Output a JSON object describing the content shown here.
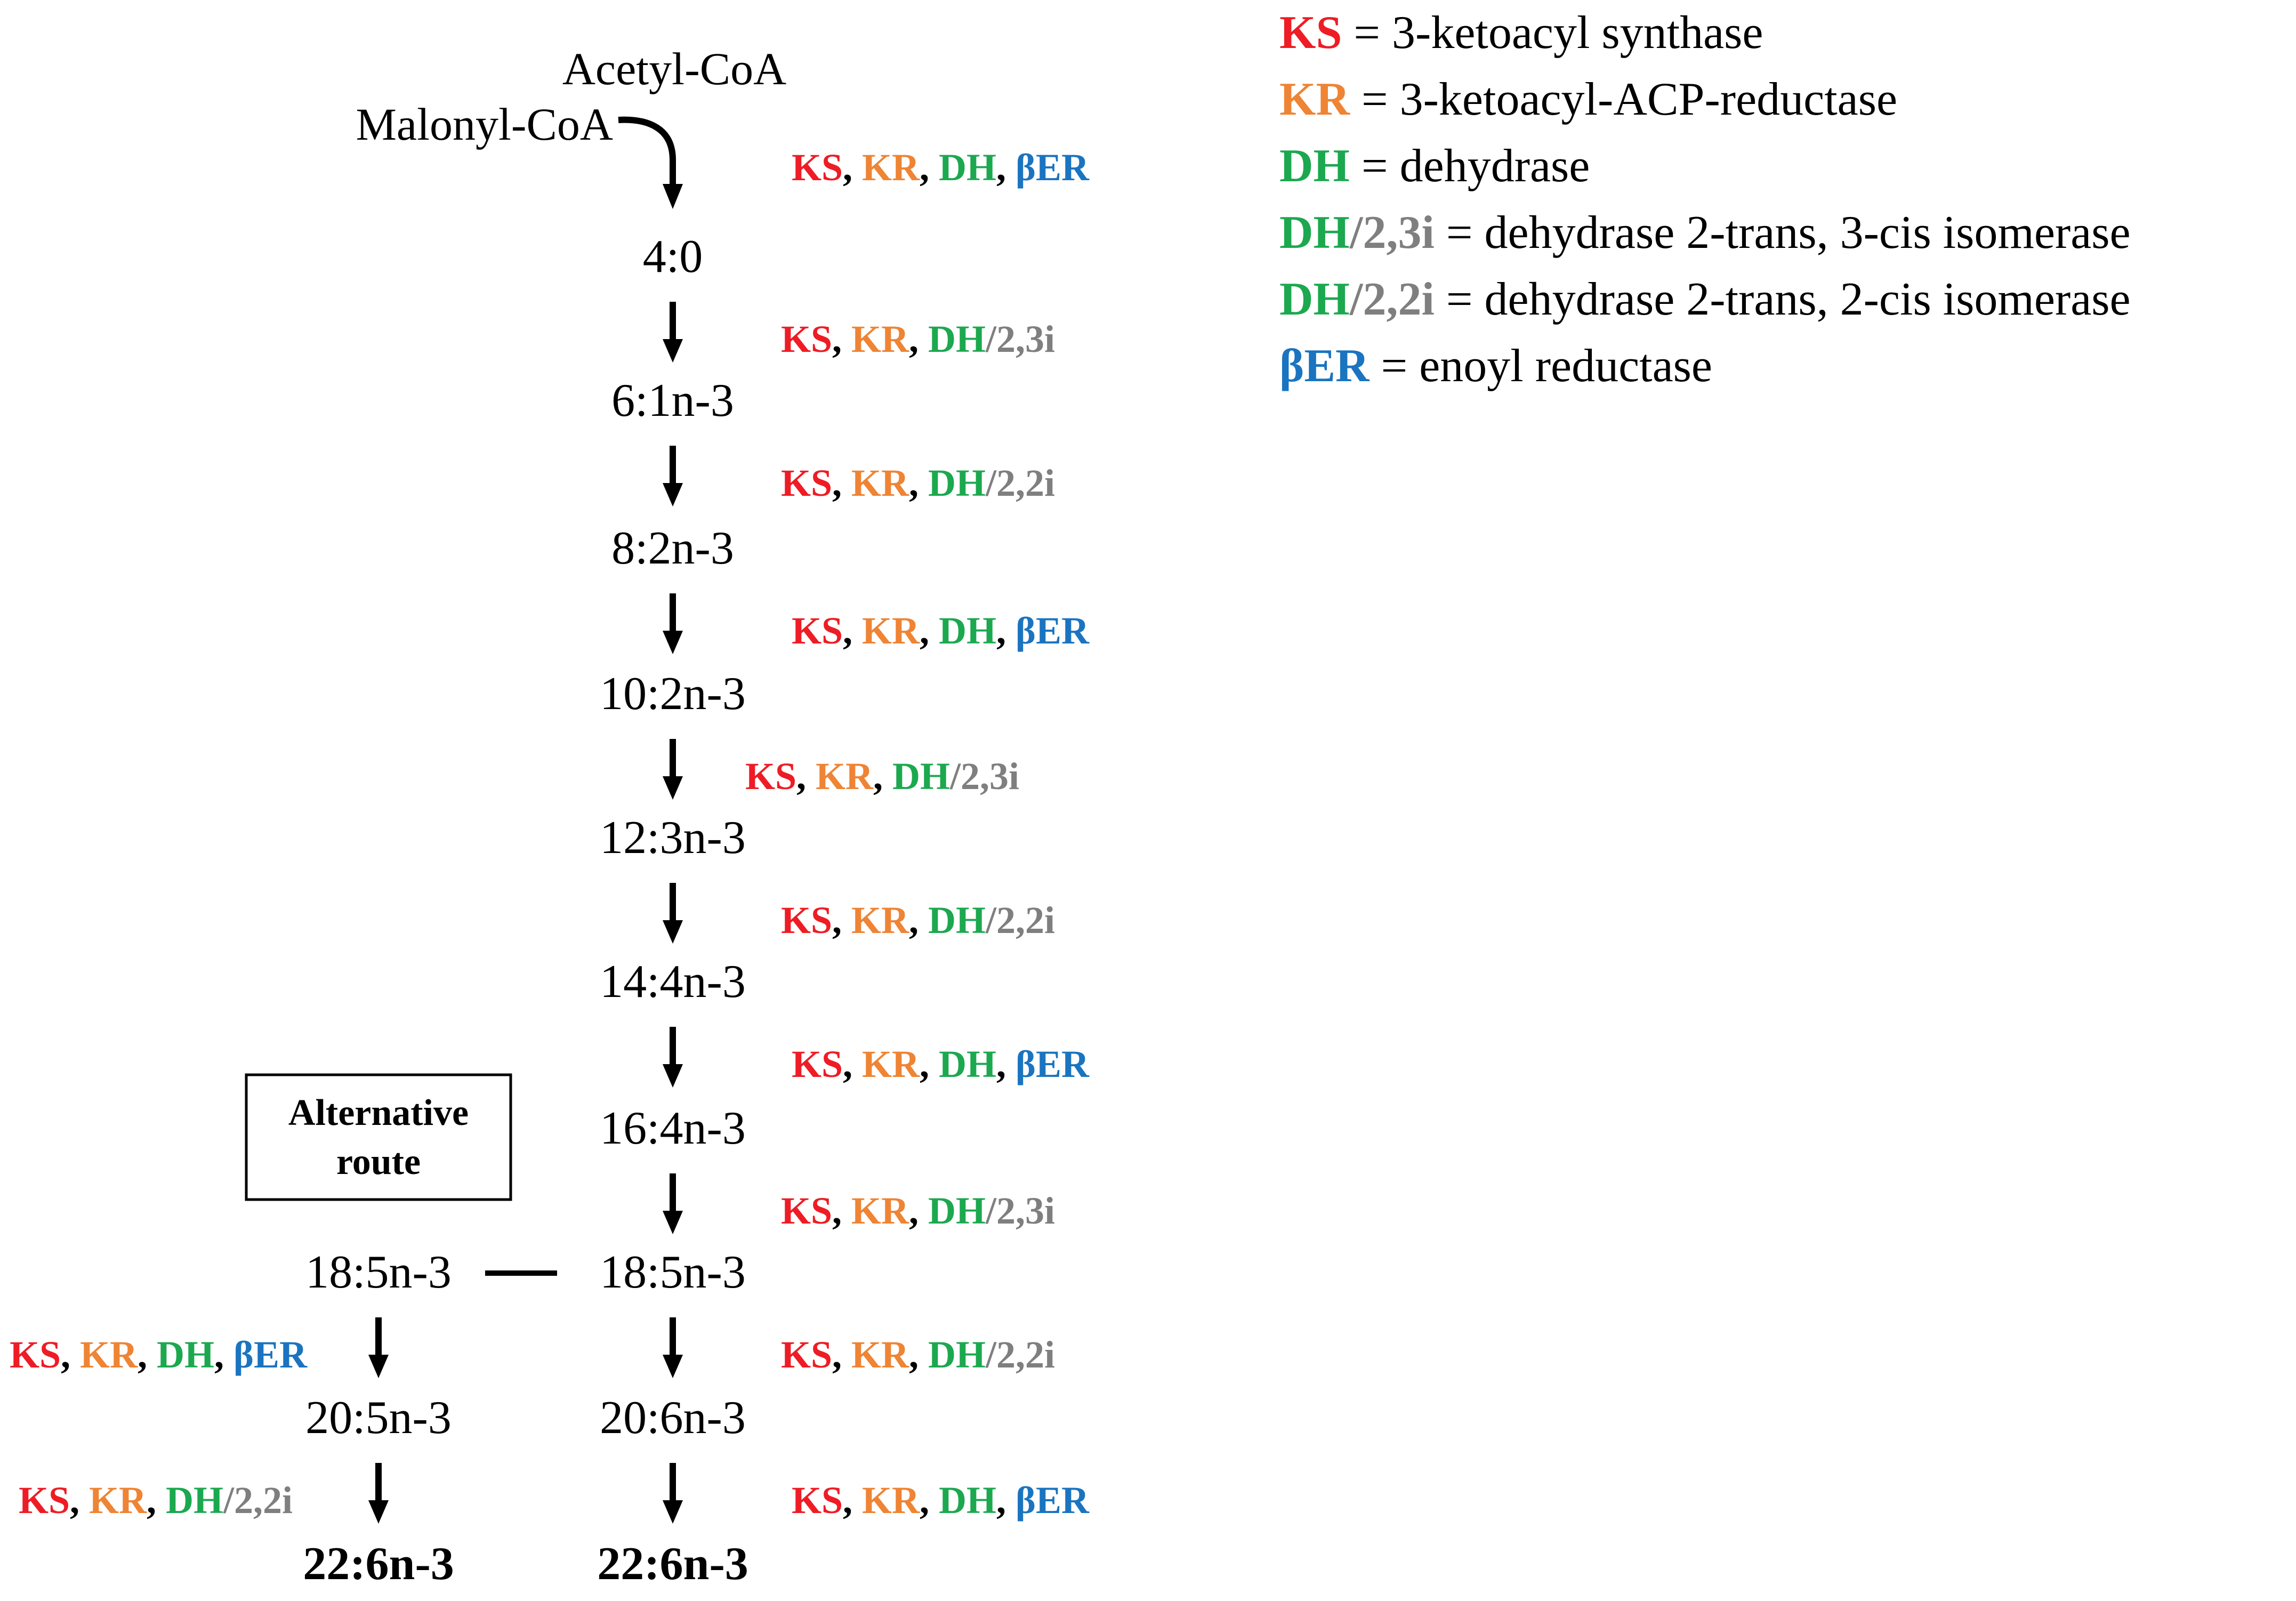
{
  "colors": {
    "KS": "#ee1c25",
    "KR": "#ee8434",
    "DH": "#1ca84f",
    "iso": "#7f7f7f",
    "ER": "#1a74c0",
    "text": "#000000"
  },
  "start": {
    "acetyl": "Acetyl-CoA",
    "malonyl": "Malonyl-CoA"
  },
  "enzymes": {
    "KS": "KS",
    "KR": "KR",
    "DH": "DH",
    "ER": "βER",
    "i23": "/2,3i",
    "i22": "/2,2i",
    "sep": ", "
  },
  "main_intermediates": [
    "4:0",
    "6:1n-3",
    "8:2n-3",
    "10:2n-3",
    "12:3n-3",
    "14:4n-3",
    "16:4n-3",
    "18:5n-3",
    "20:6n-3",
    "22:6n-3"
  ],
  "main_steps": [
    "ER",
    "i23",
    "i22",
    "ER",
    "i23",
    "i22",
    "ER",
    "i23",
    "i22",
    "ER"
  ],
  "alt": {
    "box_line1": "Alternative",
    "box_line2": "route",
    "intermediates": [
      "18:5n-3",
      "20:5n-3",
      "22:6n-3"
    ],
    "steps": [
      "ER",
      "i22"
    ]
  },
  "legend": [
    {
      "key": "KS",
      "iso": "",
      "text": "= 3-ketoacyl synthase"
    },
    {
      "key": "KR",
      "iso": "",
      "text": "= 3-ketoacyl-ACP-reductase"
    },
    {
      "key": "DH",
      "iso": "",
      "text": "= dehydrase"
    },
    {
      "key": "DH",
      "iso": "/2,3i",
      "text": "= dehydrase 2-trans, 3-cis isomerase"
    },
    {
      "key": "DH",
      "iso": "/2,2i",
      "text": "= dehydrase 2-trans, 2-cis isomerase"
    },
    {
      "key": "ER",
      "iso": "",
      "text": "= enoyl reductase"
    }
  ]
}
